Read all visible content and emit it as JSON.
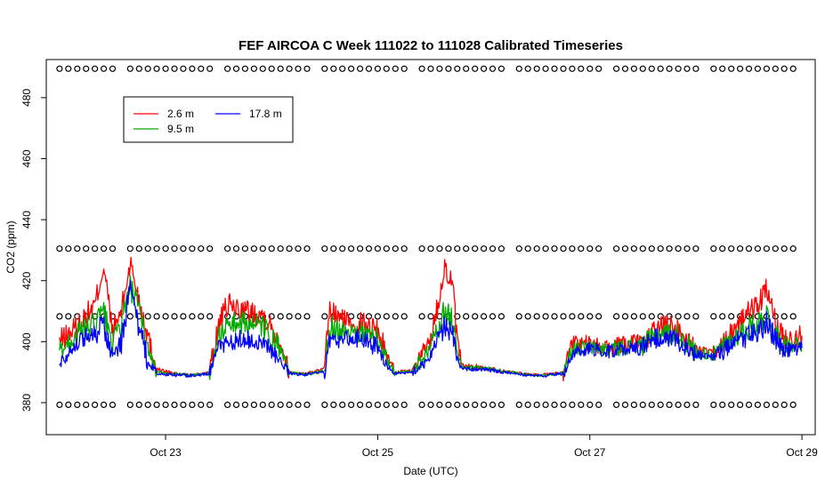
{
  "chart_data": {
    "type": "line",
    "title": "FEF AIRCOA C  Week 111022 to 111028  Calibrated Timeseries",
    "xlabel": "Date (UTC)",
    "ylabel": "CO2 (ppm)",
    "x_ticks": [
      {
        "x": "2011-10-23",
        "label": "Oct 23"
      },
      {
        "x": "2011-10-25",
        "label": "Oct 25"
      },
      {
        "x": "2011-10-27",
        "label": "Oct 27"
      },
      {
        "x": "2011-10-29",
        "label": "Oct 29"
      }
    ],
    "y_ticks": [
      380,
      400,
      420,
      440,
      460,
      480
    ],
    "xlim": [
      "2011-10-21T21:00",
      "2011-10-29T03:00"
    ],
    "ylim": [
      369.5,
      492.5
    ],
    "legend": {
      "position": "top-left",
      "columns": 2
    },
    "series": [
      {
        "name": "2.6 m",
        "color": "#ff0000",
        "points": [
          [
            "2011-10-22T00:00",
            400
          ],
          [
            "2011-10-22T04:00",
            405
          ],
          [
            "2011-10-22T08:00",
            412
          ],
          [
            "2011-10-22T10:00",
            425
          ],
          [
            "2011-10-22T12:00",
            403
          ],
          [
            "2011-10-22T14:00",
            410
          ],
          [
            "2011-10-22T16:00",
            426
          ],
          [
            "2011-10-22T18:00",
            414
          ],
          [
            "2011-10-22T20:00",
            402
          ],
          [
            "2011-10-22T22:00",
            391
          ],
          [
            "2011-10-23T02:00",
            389.5
          ],
          [
            "2011-10-23T06:00",
            389
          ],
          [
            "2011-10-23T10:00",
            390
          ],
          [
            "2011-10-23T12:00",
            405
          ],
          [
            "2011-10-23T14:00",
            412
          ],
          [
            "2011-10-23T18:00",
            410
          ],
          [
            "2011-10-23T22:00",
            409
          ],
          [
            "2011-10-24T02:00",
            400
          ],
          [
            "2011-10-24T04:00",
            390
          ],
          [
            "2011-10-24T08:00",
            389.5
          ],
          [
            "2011-10-24T12:00",
            391
          ],
          [
            "2011-10-24T13:00",
            410
          ],
          [
            "2011-10-24T16:00",
            407
          ],
          [
            "2011-10-24T20:00",
            406
          ],
          [
            "2011-10-25T00:00",
            404
          ],
          [
            "2011-10-25T02:00",
            396
          ],
          [
            "2011-10-25T04:00",
            390
          ],
          [
            "2011-10-25T08:00",
            390.5
          ],
          [
            "2011-10-25T12:00",
            401
          ],
          [
            "2011-10-25T14:00",
            415
          ],
          [
            "2011-10-25T15:00",
            425
          ],
          [
            "2011-10-25T17:00",
            418
          ],
          [
            "2011-10-25T18:00",
            400
          ],
          [
            "2011-10-25T19:00",
            392
          ],
          [
            "2011-10-26T00:00",
            391.5
          ],
          [
            "2011-10-26T04:00",
            390.5
          ],
          [
            "2011-10-26T12:00",
            389
          ],
          [
            "2011-10-26T18:00",
            390
          ],
          [
            "2011-10-26T20:00",
            400
          ],
          [
            "2011-10-27T00:00",
            399
          ],
          [
            "2011-10-27T04:00",
            398
          ],
          [
            "2011-10-27T12:00",
            400
          ],
          [
            "2011-10-27T16:00",
            405
          ],
          [
            "2011-10-27T20:00",
            404
          ],
          [
            "2011-10-28T00:00",
            397
          ],
          [
            "2011-10-28T04:00",
            396
          ],
          [
            "2011-10-28T06:00",
            399
          ],
          [
            "2011-10-28T10:00",
            407
          ],
          [
            "2011-10-28T14:00",
            412
          ],
          [
            "2011-10-28T16:00",
            417
          ],
          [
            "2011-10-28T18:00",
            406
          ],
          [
            "2011-10-28T20:00",
            401
          ],
          [
            "2011-10-29T00:00",
            402
          ]
        ]
      },
      {
        "name": "9.5 m",
        "color": "#00aa00",
        "points": [
          [
            "2011-10-22T00:00",
            397
          ],
          [
            "2011-10-22T04:00",
            402
          ],
          [
            "2011-10-22T08:00",
            406
          ],
          [
            "2011-10-22T10:00",
            410
          ],
          [
            "2011-10-22T12:00",
            399
          ],
          [
            "2011-10-22T14:00",
            406
          ],
          [
            "2011-10-22T16:00",
            418
          ],
          [
            "2011-10-22T18:00",
            410
          ],
          [
            "2011-10-22T20:00",
            398
          ],
          [
            "2011-10-22T22:00",
            390
          ],
          [
            "2011-10-23T02:00",
            389.3
          ],
          [
            "2011-10-23T06:00",
            389
          ],
          [
            "2011-10-23T10:00",
            389.8
          ],
          [
            "2011-10-23T12:00",
            401
          ],
          [
            "2011-10-23T14:00",
            406
          ],
          [
            "2011-10-23T18:00",
            406
          ],
          [
            "2011-10-23T22:00",
            405
          ],
          [
            "2011-10-24T02:00",
            397
          ],
          [
            "2011-10-24T04:00",
            389.8
          ],
          [
            "2011-10-24T08:00",
            389.3
          ],
          [
            "2011-10-24T12:00",
            390.5
          ],
          [
            "2011-10-24T13:00",
            405
          ],
          [
            "2011-10-24T16:00",
            404
          ],
          [
            "2011-10-24T20:00",
            403
          ],
          [
            "2011-10-25T00:00",
            401
          ],
          [
            "2011-10-25T02:00",
            394
          ],
          [
            "2011-10-25T04:00",
            389.8
          ],
          [
            "2011-10-25T08:00",
            390.3
          ],
          [
            "2011-10-25T12:00",
            398
          ],
          [
            "2011-10-25T14:00",
            406
          ],
          [
            "2011-10-25T15:00",
            410
          ],
          [
            "2011-10-25T17:00",
            407
          ],
          [
            "2011-10-25T18:00",
            396
          ],
          [
            "2011-10-25T19:00",
            391.5
          ],
          [
            "2011-10-26T00:00",
            391.3
          ],
          [
            "2011-10-26T04:00",
            390.3
          ],
          [
            "2011-10-26T12:00",
            388.8
          ],
          [
            "2011-10-26T18:00",
            389.8
          ],
          [
            "2011-10-26T20:00",
            398
          ],
          [
            "2011-10-27T00:00",
            398
          ],
          [
            "2011-10-27T04:00",
            397.5
          ],
          [
            "2011-10-27T12:00",
            399
          ],
          [
            "2011-10-27T16:00",
            403
          ],
          [
            "2011-10-27T20:00",
            402
          ],
          [
            "2011-10-28T00:00",
            396.5
          ],
          [
            "2011-10-28T04:00",
            395.8
          ],
          [
            "2011-10-28T06:00",
            398
          ],
          [
            "2011-10-28T10:00",
            403
          ],
          [
            "2011-10-28T14:00",
            406
          ],
          [
            "2011-10-28T16:00",
            409
          ],
          [
            "2011-10-28T18:00",
            403
          ],
          [
            "2011-10-28T20:00",
            399
          ],
          [
            "2011-10-29T00:00",
            399.5
          ]
        ]
      },
      {
        "name": "17.8 m",
        "color": "#0000ff",
        "points": [
          [
            "2011-10-22T00:00",
            393
          ],
          [
            "2011-10-22T04:00",
            400
          ],
          [
            "2011-10-22T08:00",
            403
          ],
          [
            "2011-10-22T10:00",
            405
          ],
          [
            "2011-10-22T12:00",
            395
          ],
          [
            "2011-10-22T14:00",
            400
          ],
          [
            "2011-10-22T16:00",
            417
          ],
          [
            "2011-10-22T18:00",
            404
          ],
          [
            "2011-10-22T20:00",
            394
          ],
          [
            "2011-10-22T22:00",
            389.5
          ],
          [
            "2011-10-23T02:00",
            389.1
          ],
          [
            "2011-10-23T06:00",
            388.9
          ],
          [
            "2011-10-23T10:00",
            389.5
          ],
          [
            "2011-10-23T12:00",
            398
          ],
          [
            "2011-10-23T14:00",
            400
          ],
          [
            "2011-10-23T18:00",
            401
          ],
          [
            "2011-10-23T22:00",
            400
          ],
          [
            "2011-10-24T02:00",
            394
          ],
          [
            "2011-10-24T04:00",
            389.5
          ],
          [
            "2011-10-24T08:00",
            389.2
          ],
          [
            "2011-10-24T12:00",
            390.2
          ],
          [
            "2011-10-24T13:00",
            400
          ],
          [
            "2011-10-24T16:00",
            401
          ],
          [
            "2011-10-24T20:00",
            401
          ],
          [
            "2011-10-25T00:00",
            398
          ],
          [
            "2011-10-25T02:00",
            392
          ],
          [
            "2011-10-25T04:00",
            389.5
          ],
          [
            "2011-10-25T08:00",
            390
          ],
          [
            "2011-10-25T12:00",
            394
          ],
          [
            "2011-10-25T14:00",
            402
          ],
          [
            "2011-10-25T15:00",
            405
          ],
          [
            "2011-10-25T17:00",
            403
          ],
          [
            "2011-10-25T18:00",
            394
          ],
          [
            "2011-10-25T19:00",
            391
          ],
          [
            "2011-10-26T00:00",
            391
          ],
          [
            "2011-10-26T04:00",
            390
          ],
          [
            "2011-10-26T12:00",
            388.6
          ],
          [
            "2011-10-26T18:00",
            389.5
          ],
          [
            "2011-10-26T20:00",
            396
          ],
          [
            "2011-10-27T00:00",
            397.5
          ],
          [
            "2011-10-27T04:00",
            397
          ],
          [
            "2011-10-27T12:00",
            398
          ],
          [
            "2011-10-27T16:00",
            402
          ],
          [
            "2011-10-27T20:00",
            400
          ],
          [
            "2011-10-28T00:00",
            396
          ],
          [
            "2011-10-28T04:00",
            395.5
          ],
          [
            "2011-10-28T06:00",
            397
          ],
          [
            "2011-10-28T10:00",
            401
          ],
          [
            "2011-10-28T14:00",
            403
          ],
          [
            "2011-10-28T16:00",
            406
          ],
          [
            "2011-10-28T18:00",
            401
          ],
          [
            "2011-10-28T20:00",
            397
          ],
          [
            "2011-10-29T00:00",
            398
          ]
        ]
      }
    ],
    "marker_rows": [
      {
        "y": 489.5,
        "marker": "o",
        "from": "2011-10-22T00:00",
        "to": "2011-10-29T00:00"
      },
      {
        "y": 430.5,
        "marker": "o",
        "from": "2011-10-22T00:00",
        "to": "2011-10-29T00:00"
      },
      {
        "y": 408.3,
        "marker": "o",
        "from": "2011-10-22T00:00",
        "to": "2011-10-29T00:00"
      },
      {
        "y": 379.3,
        "marker": "o",
        "from": "2011-10-22T00:00",
        "to": "2011-10-29T00:00"
      }
    ]
  }
}
